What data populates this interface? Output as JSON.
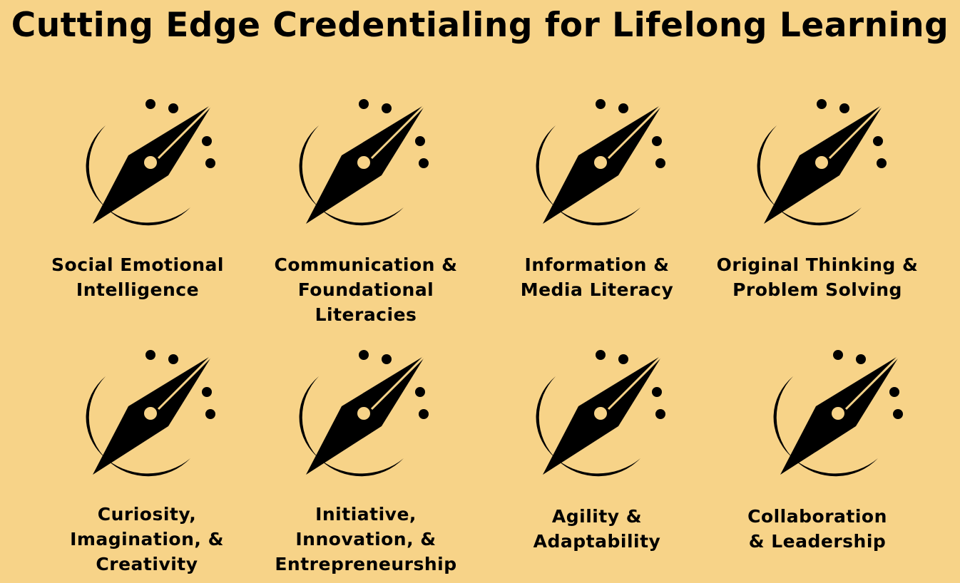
{
  "title": "Cutting Edge Credentialing for Lifelong Learning",
  "icon": "compass-icon",
  "competencies": [
    {
      "lines": [
        "Social Emotional",
        "Intelligence"
      ]
    },
    {
      "lines": [
        "Communication &",
        "Foundational",
        "Literacies"
      ]
    },
    {
      "lines": [
        "Information &",
        "Media Literacy"
      ]
    },
    {
      "lines": [
        "Original Thinking &",
        "Problem Solving"
      ]
    },
    {
      "lines": [
        "Curiosity,",
        "Imagination, &",
        "Creativity"
      ]
    },
    {
      "lines": [
        "Initiative,",
        "Innovation, &",
        "Entrepreneurship"
      ]
    },
    {
      "lines": [
        "Agility &",
        "Adaptability"
      ]
    },
    {
      "lines": [
        "Collaboration",
        "& Leadership"
      ]
    }
  ]
}
